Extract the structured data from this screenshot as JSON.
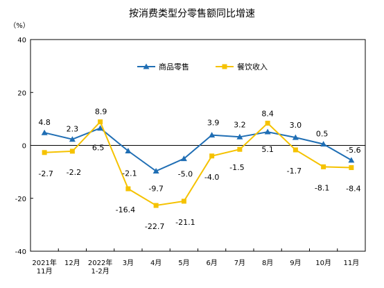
{
  "chart_data": {
    "type": "line",
    "title": "按消费类型分零售额同比增速",
    "unit_label": "（%）",
    "categories": [
      [
        "2021年",
        "11月"
      ],
      [
        "12月"
      ],
      [
        "2022年",
        "1-2月"
      ],
      [
        "3月"
      ],
      [
        "4月"
      ],
      [
        "5月"
      ],
      [
        "6月"
      ],
      [
        "7月"
      ],
      [
        "8月"
      ],
      [
        "9月"
      ],
      [
        "10月"
      ],
      [
        "11月"
      ]
    ],
    "ylim": [
      -40,
      40
    ],
    "yticks": [
      -40,
      -20,
      0,
      20,
      40
    ],
    "grid": false,
    "legend_position": "top-center",
    "series": [
      {
        "name": "商品零售",
        "color": "#1f6eb4",
        "marker": "triangle",
        "values": [
          4.8,
          2.3,
          6.5,
          -2.1,
          -9.7,
          -5.0,
          3.9,
          3.2,
          5.1,
          3.0,
          0.5,
          -5.6
        ],
        "labels": [
          "4.8",
          "2.3",
          "6.5",
          "-2.1",
          "-9.7",
          "-5.0",
          "3.9",
          "3.2",
          "5.1",
          "3.0",
          "0.5",
          "-5.6"
        ]
      },
      {
        "name": "餐饮收入",
        "color": "#f5c200",
        "marker": "square",
        "values": [
          -2.7,
          -2.2,
          8.9,
          -16.4,
          -22.7,
          -21.1,
          -4.0,
          -1.5,
          8.4,
          -1.7,
          -8.1,
          -8.4
        ],
        "labels": [
          "-2.7",
          "-2.2",
          "8.9",
          "-16.4",
          "-22.7",
          "-21.1",
          "-4.0",
          "-1.5",
          "8.4",
          "-1.7",
          "-8.1",
          "-8.4"
        ]
      }
    ]
  }
}
